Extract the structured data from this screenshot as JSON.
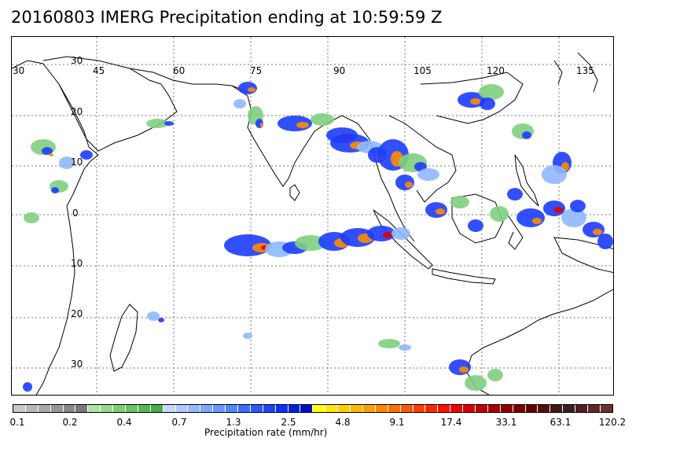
{
  "title": "20160803 IMERG Precipitation ending at 10:59:59 Z",
  "map": {
    "lon_labels": [
      "30",
      "45",
      "60",
      "75",
      "90",
      "105",
      "120",
      "135"
    ],
    "lat_labels": [
      "30",
      "20",
      "10",
      "0",
      "10",
      "20",
      "30"
    ],
    "region": "Indian Ocean, South and Southeast Asia, Maritime Continent, Australia",
    "gridline_style": "dotted",
    "precip_colors": {
      "light_green": "#7fcf7f",
      "light_blue": "#8fb8ff",
      "blue": "#1c3cff",
      "dark_blue": "#0000c8",
      "yellow": "#ffe000",
      "orange": "#ff8c00",
      "red": "#e00000"
    }
  },
  "colorbar": {
    "label": "Precipitation rate (mm/hr)",
    "ticks": [
      "0.1",
      "0.2",
      "0.4",
      "0.7",
      "1.3",
      "2.5",
      "4.8",
      "9.1",
      "17.4",
      "33.1",
      "63.1",
      "120.2"
    ],
    "colors": [
      "#c8c8c8",
      "#b8b8b8",
      "#a8a8a8",
      "#989898",
      "#888888",
      "#787878",
      "#a8e6a0",
      "#90dc88",
      "#78d070",
      "#68c460",
      "#58b850",
      "#48ac48",
      "#c8d8ff",
      "#b0c8ff",
      "#98b8ff",
      "#80a8ff",
      "#6898ff",
      "#5088ff",
      "#3c6cff",
      "#2c58ff",
      "#1c44ff",
      "#0c30ff",
      "#0020e0",
      "#0010c0",
      "#ffff00",
      "#ffe800",
      "#ffd000",
      "#ffb800",
      "#ffa000",
      "#ff8800",
      "#ff7000",
      "#ff5800",
      "#ff4000",
      "#ff2800",
      "#ff1000",
      "#f00000",
      "#d80000",
      "#c00000",
      "#a80000",
      "#900000",
      "#780000",
      "#600000",
      "#501010",
      "#401818",
      "#382020",
      "#502020",
      "#602828",
      "#703030"
    ]
  }
}
